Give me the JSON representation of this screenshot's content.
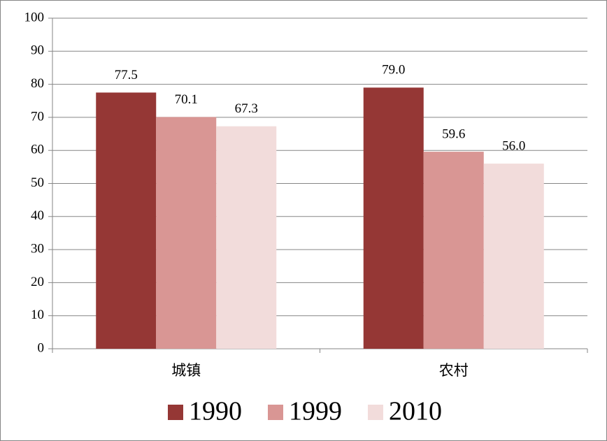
{
  "chart_data": {
    "type": "bar",
    "categories": [
      "城镇",
      "农村"
    ],
    "series": [
      {
        "name": "1990",
        "color": "#953735",
        "values": [
          77.5,
          79
        ],
        "value_labels": [
          "77.5",
          "79.0"
        ]
      },
      {
        "name": "1999",
        "color": "#d99694",
        "values": [
          70.1,
          59.6
        ],
        "value_labels": [
          "70.1",
          "59.6"
        ]
      },
      {
        "name": "2010",
        "color": "#f2dcdb",
        "values": [
          67.3,
          56
        ],
        "value_labels": [
          "67.3",
          "56.0"
        ]
      }
    ],
    "ylim": [
      0,
      100
    ],
    "yticks": [
      0,
      10,
      20,
      30,
      40,
      50,
      60,
      70,
      80,
      90,
      100
    ],
    "grid": true,
    "legend": "bottom"
  }
}
